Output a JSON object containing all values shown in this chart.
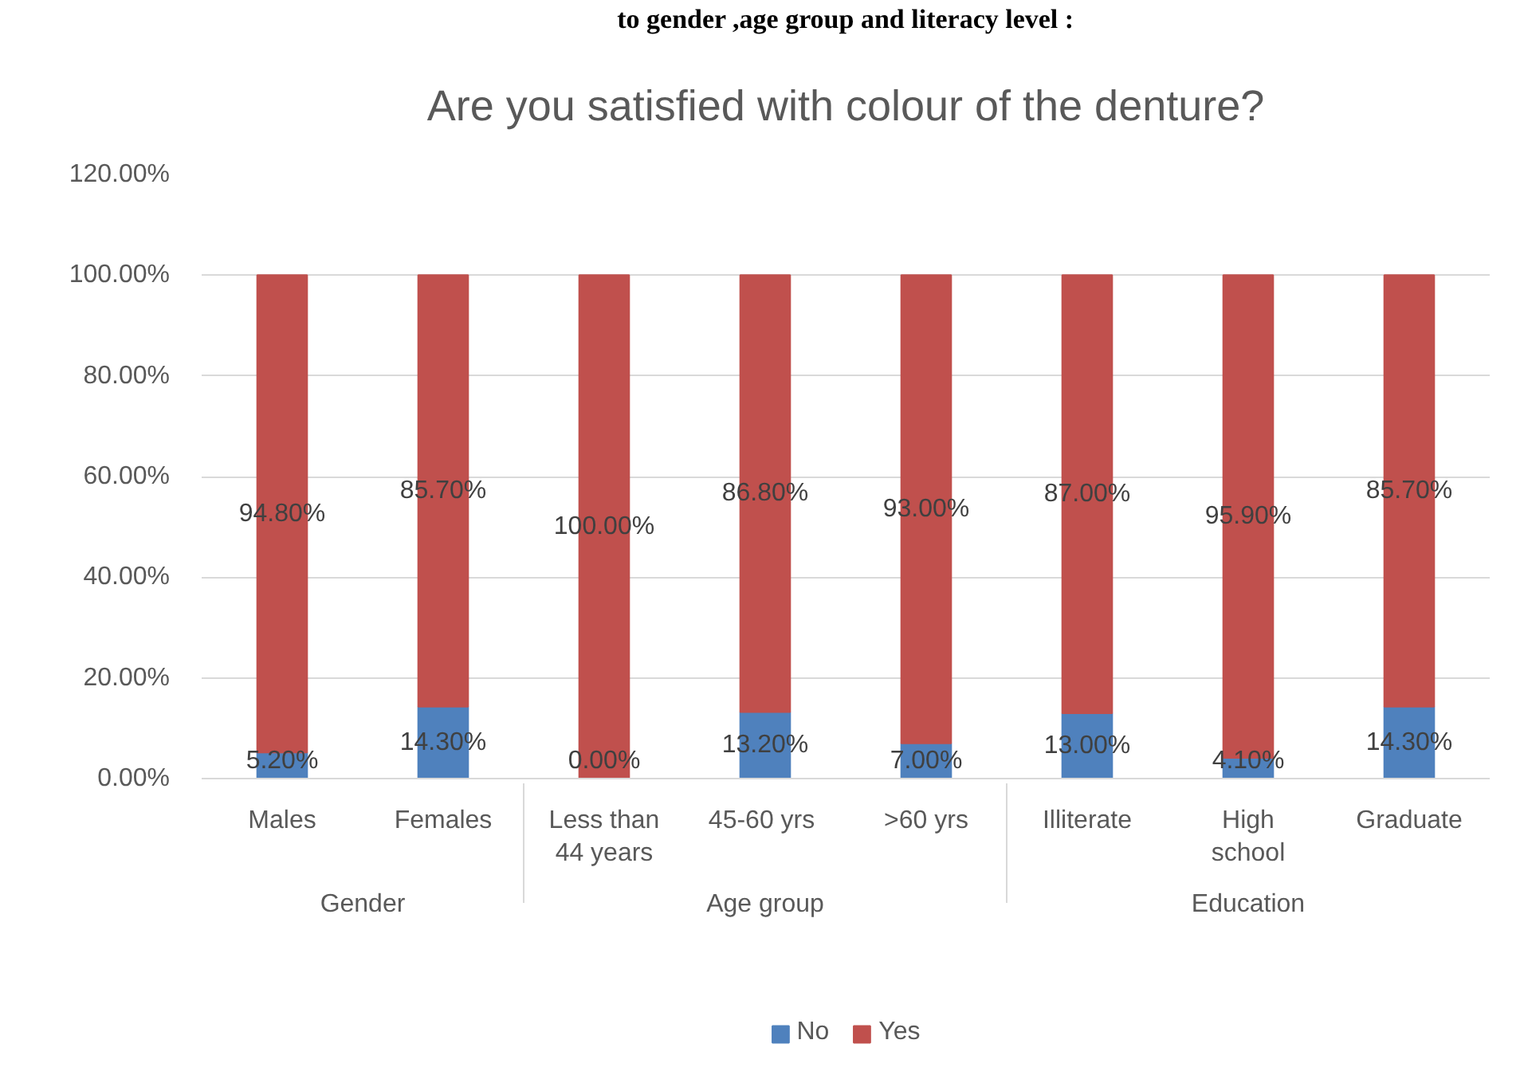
{
  "chart_data": {
    "type": "bar",
    "stacked": true,
    "title": "Are you satisfied with colour of the denture?",
    "annotations": [
      "to gender ,age group and literacy level :"
    ],
    "categories": [
      [
        "Gender",
        "Males"
      ],
      [
        null,
        "Females"
      ],
      [
        "Age group",
        "Less than 44 years"
      ],
      [
        null,
        "45-60  yrs"
      ],
      [
        null,
        ">60 yrs"
      ],
      [
        "Education",
        "Illiterate"
      ],
      [
        null,
        "High school"
      ],
      [
        null,
        "Graduate"
      ]
    ],
    "series": [
      {
        "name": "No",
        "color": "#4f81bd",
        "values": [
          5.2,
          14.3,
          0,
          13.2,
          7.0,
          13.0,
          4.1,
          14.3
        ],
        "value_labels": [
          "5.20%",
          "14.30%",
          "0.00%",
          "13.20%",
          "7.00%",
          "13.00%",
          "4.10%",
          "14.30%"
        ]
      },
      {
        "name": "Yes",
        "color": "#c0504d",
        "values": [
          94.8,
          85.7,
          100,
          86.8,
          93.0,
          87.0,
          95.9,
          85.7
        ],
        "value_labels": [
          "94.80%",
          "85.70%",
          "100.00%",
          "86.80%",
          "93.00%",
          "87.00%",
          "95.90%",
          "85.70%"
        ]
      }
    ],
    "ylim": [
      0,
      120
    ],
    "yticks": [
      {
        "value": 0,
        "label": "0.00%"
      },
      {
        "value": 20,
        "label": "20.00%"
      },
      {
        "value": 40,
        "label": "40.00%"
      },
      {
        "value": 60,
        "label": "60.00%"
      },
      {
        "value": 80,
        "label": "80.00%"
      },
      {
        "value": 100,
        "label": "100.00%"
      },
      {
        "value": 120,
        "label": "120.00%"
      }
    ],
    "grid": "y",
    "legend": "bottom"
  }
}
